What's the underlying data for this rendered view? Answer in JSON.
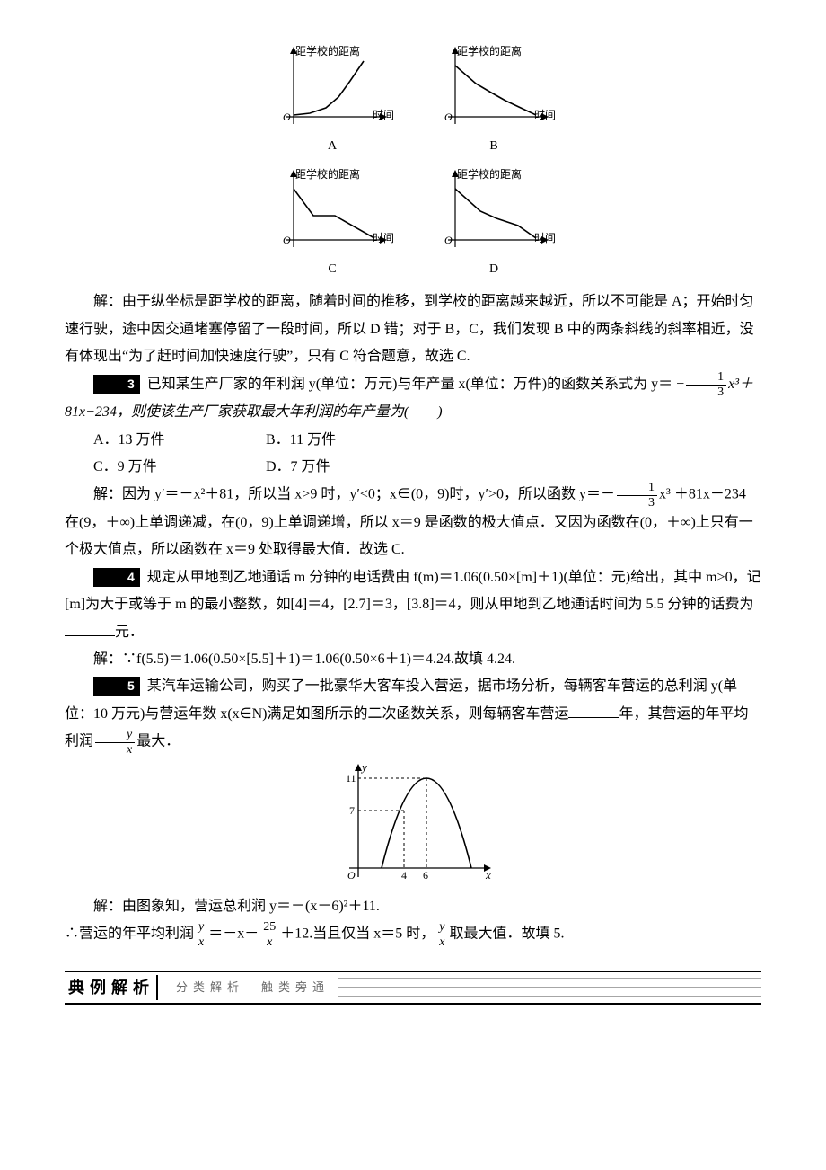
{
  "miniCharts": {
    "ylabel": "距学校的距离",
    "xlabel": "时间",
    "origin": "O",
    "axis_color": "#000000",
    "curve_color": "#000000",
    "captions": {
      "A": "A",
      "B": "B",
      "C": "C",
      "D": "D"
    },
    "curves": {
      "A": [
        [
          22,
          80
        ],
        [
          40,
          78
        ],
        [
          58,
          72
        ],
        [
          72,
          60
        ],
        [
          85,
          42
        ],
        [
          100,
          20
        ]
      ],
      "B": [
        [
          22,
          25
        ],
        [
          45,
          45
        ],
        [
          62,
          55
        ],
        [
          78,
          64
        ],
        [
          95,
          72
        ],
        [
          112,
          80
        ]
      ],
      "C": [
        [
          22,
          25
        ],
        [
          44,
          55
        ],
        [
          68,
          55
        ],
        [
          112,
          80
        ]
      ],
      "D": [
        [
          22,
          25
        ],
        [
          50,
          50
        ],
        [
          68,
          58
        ],
        [
          92,
          66
        ],
        [
          112,
          80
        ]
      ]
    }
  },
  "solution2": "解：由于纵坐标是距学校的距离，随着时间的推移，到学校的距离越来越近，所以不可能是 A；开始时匀速行驶，途中因交通堵塞停留了一段时间，所以 D 错；对于 B，C，我们发现 B 中的两条斜线的斜率相近，没有体现出“为了赶时间加快速度行驶”，只有 C 符合题意，故选 C.",
  "q3": {
    "num": "3",
    "text_before": "已知某生产厂家的年利润 y(单位：万元)与年产量 x(单位：万件)的函数关系式为 y＝",
    "frac_neg": "−",
    "frac_num": "1",
    "frac_den": "3",
    "text_after": "x³＋81x−234，则使该生产厂家获取最大年利润的年产量为(　　)",
    "options": {
      "A": "A．13 万件",
      "B": "B．11 万件",
      "C": "C．9 万件",
      "D": "D．7 万件"
    }
  },
  "solution3": {
    "part1_a": "解：因为 y′＝－x²＋81，所以当 x>9 时，y′<0；x∈(0，9)时，y′>0，所以函数 y＝－",
    "frac_num": "1",
    "frac_den": "3",
    "part1_b": "x³",
    "part2": "＋81x－234 在(9，＋∞)上单调递减，在(0，9)上单调递增，所以 x＝9 是函数的极大值点．又因为函数在(0，＋∞)上只有一个极大值点，所以函数在 x＝9 处取得最大值．故选 C."
  },
  "q4": {
    "num": "4",
    "text1": "规定从甲地到乙地通话 m 分钟的电话费由 f(m)＝1.06(0.50×[m]＋1)(单位：元)给出，其中 m>0，记[m]为大于或等于 m 的最小整数，如[4]＝4，[2.7]＝3，[3.8]＝4，则从甲地到乙地通话时间为 5.5 分钟的话费为",
    "text2": "元．"
  },
  "solution4": "解：∵f(5.5)＝1.06(0.50×[5.5]＋1)＝1.06(0.50×6＋1)＝4.24.故填 4.24.",
  "q5": {
    "num": "5",
    "text1": "某汽车运输公司，购买了一批豪华大客车投入营运，据市场分析，每辆客车营运的总利润 y(单位：10 万元)与营运年数 x(x∈N)满足如图所示的二次函数关系，则每辆客车营运",
    "text2": "年，其营运的年平均利润",
    "frac_num": "y",
    "frac_den": "x",
    "text3": "最大．"
  },
  "parabola": {
    "bg": "#ffffff",
    "axis_color": "#000000",
    "curve_color": "#000000",
    "dash_color": "#000000",
    "points": {
      "origin": "O",
      "x1": "4",
      "x2": "6",
      "y1": "7",
      "y2": "11",
      "xlabel": "x",
      "ylabel": "y"
    }
  },
  "solution5": {
    "line1": "解：由图象知，营运总利润 y＝－(x－6)²＋11.",
    "line2a": "∴营运的年平均利润",
    "frac1_num": "y",
    "frac1_den": "x",
    "line2b": "＝－x－",
    "frac2_num": "25",
    "frac2_den": "x",
    "line2c": "＋12.当且仅当 x＝5 时，",
    "frac3_num": "y",
    "frac3_den": "x",
    "line2d": "取最大值．故填 5."
  },
  "footer": {
    "label": "典例解析",
    "sub": "分类解析　触类旁通"
  }
}
